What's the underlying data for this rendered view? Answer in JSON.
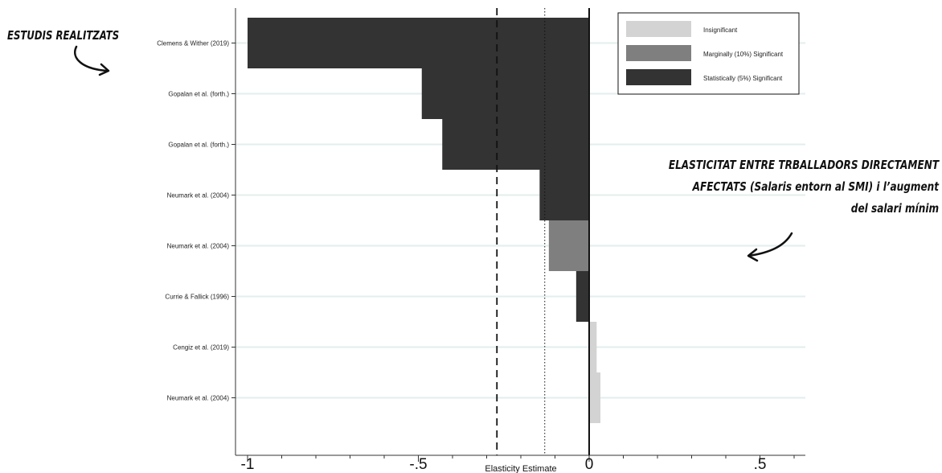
{
  "annotations": {
    "studies": "ESTUDIS REALITZATS",
    "elasticity_line1": "ELASTICITAT  ENTRE TRBALLADORS DIRECTAMENT",
    "elasticity_line2": "AFECTATS (Salaris entorn al SMI) i  l’augment",
    "elasticity_line3": "del salari mínim"
  },
  "chart_data": {
    "type": "bar",
    "orientation": "horizontal",
    "xlabel": "Elasticity Estimate",
    "ylabel": "",
    "xlim": [
      -1.03,
      0.63
    ],
    "xticks": [
      -1,
      -0.5,
      0,
      0.5
    ],
    "xtick_labels": [
      "-1",
      "-.5",
      "0",
      ".5"
    ],
    "grid": true,
    "legend_position": "top-right",
    "legend": [
      {
        "label": "Insignificant",
        "color": "#d3d3d3"
      },
      {
        "label": "Marginally (10%) Significant",
        "color": "#7f7f7f"
      },
      {
        "label": "Statistically (5%) Significant",
        "color": "#333333"
      }
    ],
    "categories": [
      "Clemens & Wither (2019)",
      "Gopalan et al. (forth.)",
      "Gopalan et al. (forth.)",
      "Neumark et al. (2004)",
      "Neumark et al. (2004)",
      "Currie & Fallick (1996)",
      "Cengiz et al. (2019)",
      "Neumark et al. (2004)"
    ],
    "bars": [
      {
        "value": -1.0,
        "significance": "Statistically (5%) Significant"
      },
      {
        "value": -0.49,
        "significance": "Statistically (5%) Significant"
      },
      {
        "value": -0.43,
        "significance": "Statistically (5%) Significant"
      },
      {
        "value": -0.145,
        "significance": "Statistically (5%) Significant"
      },
      {
        "value": -0.118,
        "significance": "Marginally (10%) Significant"
      },
      {
        "value": -0.038,
        "significance": "Statistically (5%) Significant"
      },
      {
        "value": 0.022,
        "significance": "Insignificant"
      },
      {
        "value": 0.033,
        "significance": "Insignificant"
      }
    ],
    "reference_lines": [
      {
        "value": -0.27,
        "style": "dashed"
      },
      {
        "value": -0.13,
        "style": "dotted"
      },
      {
        "value": 0,
        "style": "solid"
      }
    ]
  }
}
